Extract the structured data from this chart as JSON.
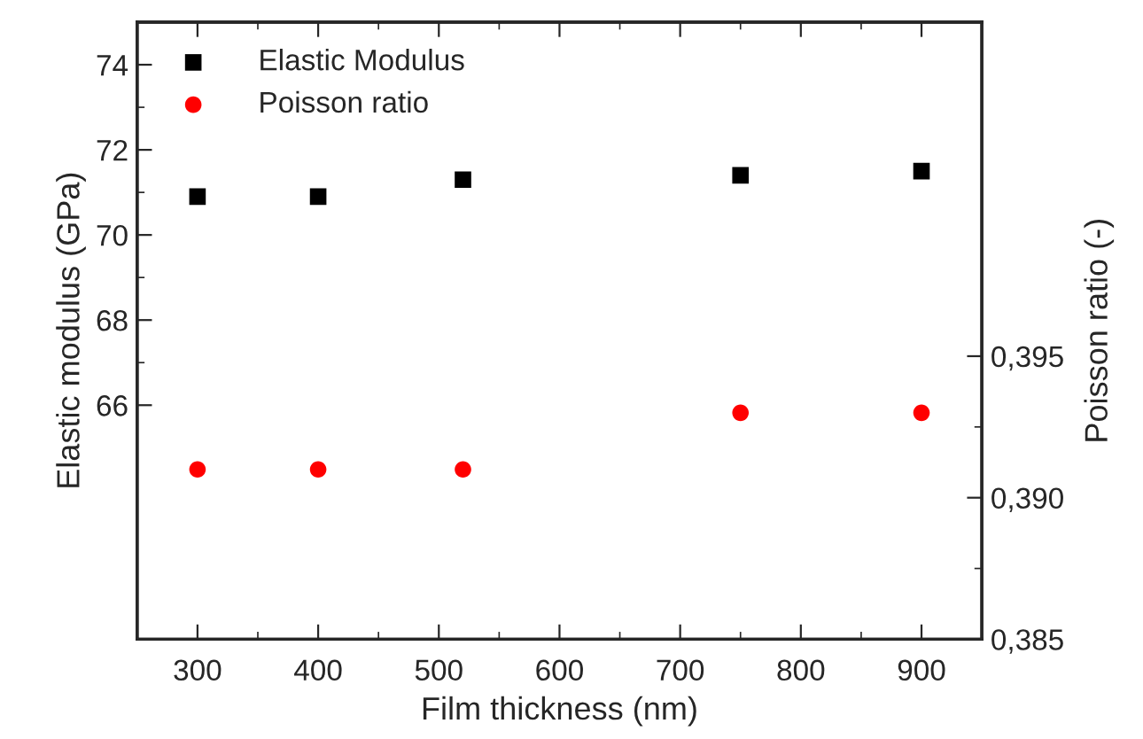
{
  "chart_data": {
    "type": "scatter",
    "xlabel": "Film thickness (nm)",
    "ylabel": "Elastic modulus (GPa)",
    "y2label": "Poisson ratio (-)",
    "x": [
      300,
      400,
      520,
      750,
      900
    ],
    "series": [
      {
        "name": "Elastic Modulus",
        "color": "#000000",
        "marker": "square",
        "values": [
          70.9,
          70.9,
          71.3,
          71.4,
          71.5
        ]
      },
      {
        "name": "Poisson ratio",
        "color": "#ff0000",
        "marker": "circle",
        "axis": "y2",
        "values": [
          0.391,
          0.391,
          0.391,
          0.393,
          0.393
        ]
      }
    ],
    "xlim": [
      250,
      950
    ],
    "xticks": [
      300,
      400,
      500,
      600,
      700,
      800,
      900
    ],
    "ylim": [
      60.5,
      75
    ],
    "yticks": [
      66,
      68,
      70,
      72,
      74
    ],
    "y2lim": [
      0.385,
      0.4068
    ],
    "y2ticks": [
      {
        "value": 0.385,
        "label": "0,385"
      },
      {
        "value": 0.39,
        "label": "0,390"
      },
      {
        "value": 0.395,
        "label": "0,395"
      }
    ],
    "legend": "top left",
    "grid": false
  }
}
